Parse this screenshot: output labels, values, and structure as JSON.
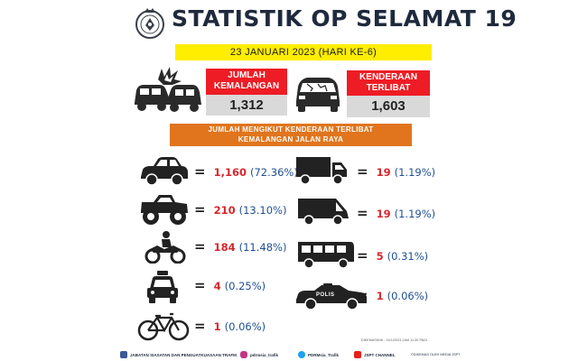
{
  "header": {
    "title": "STATISTIK OP SELAMAT 19",
    "logo_icon": "police-crest-icon",
    "date": "23 JANUARI 2023 (HARI KE-6)"
  },
  "summary": {
    "accidents": {
      "label_line1": "JUMLAH",
      "label_line2": "KEMALANGAN",
      "value": "1,312",
      "icon": "car-crash-icon"
    },
    "vehicles": {
      "label_line1": "KENDERAAN",
      "label_line2": "TERLIBAT",
      "value": "1,603",
      "icon": "damaged-car-icon"
    }
  },
  "section": {
    "line1": "JUMLAH MENGIKUT KENDERAAN TERLIBAT",
    "line2": "KEMALANGAN JALAN RAYA"
  },
  "breakdown": [
    {
      "icon": "car-icon",
      "eq": "=",
      "count": "1,160",
      "percent": "(72.36%)"
    },
    {
      "icon": "truck-icon",
      "eq": "=",
      "count": "19",
      "percent": "(1.19%)"
    },
    {
      "icon": "4x4-vehicle-icon",
      "eq": "=",
      "count": "210",
      "percent": "(13.10%)"
    },
    {
      "icon": "van-icon",
      "eq": "=",
      "count": "19",
      "percent": "(1.19%)"
    },
    {
      "icon": "motorcycle-icon",
      "eq": "=",
      "count": "184",
      "percent": "(11.48%)"
    },
    {
      "icon": "bus-icon",
      "eq": "=",
      "count": "5",
      "percent": "(0.31%)"
    },
    {
      "icon": "taxi-icon",
      "eq": "=",
      "count": "4",
      "percent": "(0.25%)"
    },
    {
      "icon": "police-car-icon",
      "eq": "=",
      "count": "1",
      "percent": "(0.06%)",
      "badge": "POLIS"
    },
    {
      "icon": "bicycle-icon",
      "eq": "=",
      "count": "1",
      "percent": "(0.06%)"
    }
  ],
  "footer": {
    "updated": "DIKEMASKINI : 24/1/2023 JAM 11:30 PAGI",
    "socials": [
      {
        "icon": "facebook-icon",
        "label": "JABATAN SIASATAN DAN PENGUATKUASAAN TRAFIK",
        "color": "#3b5998"
      },
      {
        "icon": "instagram-icon",
        "label": "pdrmsia_trafik",
        "color": "#c13584"
      },
      {
        "icon": "twitter-icon",
        "label": "PDRMsia_Trafik",
        "color": "#1da1f2"
      },
      {
        "icon": "youtube-icon",
        "label": "JSPT CHANNEL",
        "color": "#e62117"
      }
    ],
    "credit": "©DIKEMAS OLEH MEDIA JSPT"
  }
}
